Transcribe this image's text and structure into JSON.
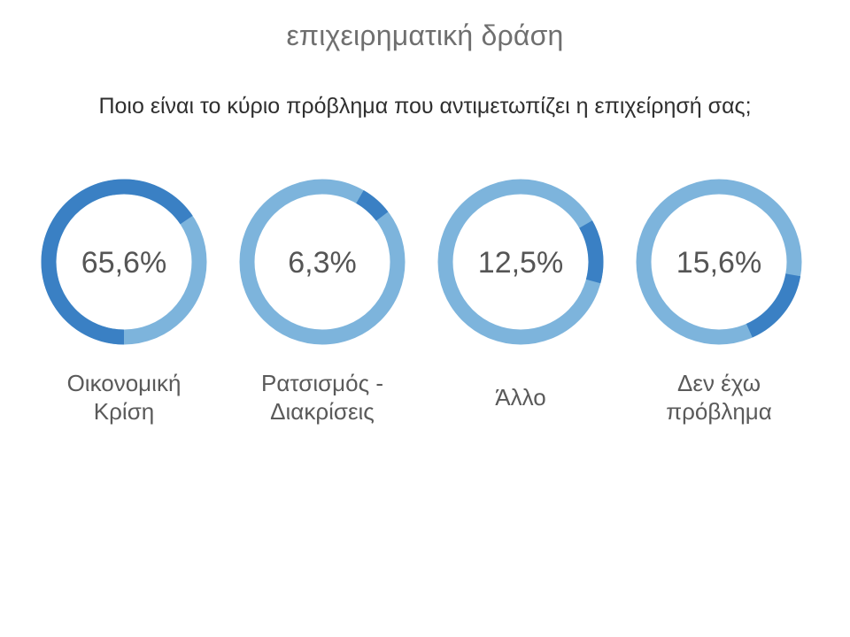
{
  "slide": {
    "title": "επιχειρηματική δράση",
    "question": "Ποιο είναι το κύριο πρόβλημα που αντιμετωπίζει η επιχείρησή σας;"
  },
  "colors": {
    "highlight": "#3a80c4",
    "track": "#7db4dc",
    "percent_text": "#555555"
  },
  "chart_data": {
    "type": "pie",
    "categories": [
      "Οικονομική Κρίση",
      "Ρατσισμός - Διακρίσεις",
      "Άλλο",
      "Δεν έχω πρόβλημα"
    ],
    "values": [
      65.6,
      6.3,
      12.5,
      15.6
    ],
    "value_labels": [
      "65,6%",
      "6,3%",
      "12,5%",
      "15,6%"
    ],
    "label_lines": [
      [
        "Οικονομική",
        "Κρίση"
      ],
      [
        "Ρατσισμός -",
        "Διακρίσεις"
      ],
      [
        "Άλλο"
      ],
      [
        "Δεν έχω",
        "πρόβλημα"
      ]
    ]
  }
}
